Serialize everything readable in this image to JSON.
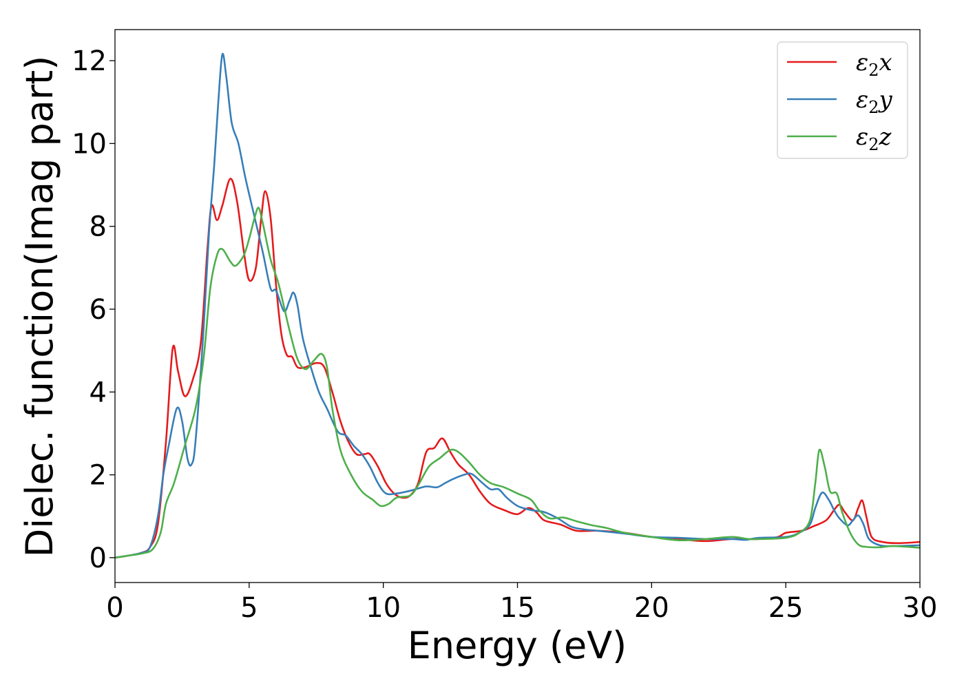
{
  "chart_data": {
    "type": "line",
    "xlabel": "Energy (eV)",
    "ylabel": "Dielec. function(Imag part)",
    "xlim": [
      0,
      30
    ],
    "ylim": [
      -0.6,
      12.75
    ],
    "xticks": [
      0,
      5,
      10,
      15,
      20,
      25,
      30
    ],
    "yticks": [
      0,
      2,
      4,
      6,
      8,
      10,
      12
    ],
    "grid": false,
    "legend_position": "top-right",
    "series": [
      {
        "name": "ε2x",
        "legend": {
          "base": "ε",
          "sub": "2",
          "axis": "x"
        },
        "color": "#e41a1c",
        "points": [
          [
            0,
            0
          ],
          [
            0.5,
            0.05
          ],
          [
            1.0,
            0.12
          ],
          [
            1.3,
            0.25
          ],
          [
            1.6,
            0.8
          ],
          [
            1.9,
            2.8
          ],
          [
            2.15,
            5.05
          ],
          [
            2.35,
            4.5
          ],
          [
            2.6,
            3.9
          ],
          [
            2.9,
            4.3
          ],
          [
            3.2,
            5.2
          ],
          [
            3.45,
            7.5
          ],
          [
            3.6,
            8.5
          ],
          [
            3.8,
            8.15
          ],
          [
            4.0,
            8.5
          ],
          [
            4.3,
            9.15
          ],
          [
            4.55,
            8.6
          ],
          [
            4.8,
            7.4
          ],
          [
            5.0,
            6.7
          ],
          [
            5.25,
            7.0
          ],
          [
            5.45,
            8.2
          ],
          [
            5.6,
            8.85
          ],
          [
            5.8,
            8.2
          ],
          [
            6.0,
            6.6
          ],
          [
            6.2,
            5.4
          ],
          [
            6.4,
            4.9
          ],
          [
            6.6,
            4.85
          ],
          [
            6.8,
            4.6
          ],
          [
            7.1,
            4.6
          ],
          [
            7.5,
            4.7
          ],
          [
            7.8,
            4.6
          ],
          [
            8.1,
            4.0
          ],
          [
            8.4,
            3.3
          ],
          [
            8.7,
            2.8
          ],
          [
            9.0,
            2.5
          ],
          [
            9.3,
            2.5
          ],
          [
            9.5,
            2.5
          ],
          [
            9.8,
            2.2
          ],
          [
            10.1,
            1.8
          ],
          [
            10.4,
            1.55
          ],
          [
            10.7,
            1.45
          ],
          [
            11.0,
            1.5
          ],
          [
            11.3,
            1.8
          ],
          [
            11.6,
            2.55
          ],
          [
            11.9,
            2.65
          ],
          [
            12.2,
            2.88
          ],
          [
            12.5,
            2.55
          ],
          [
            12.8,
            2.25
          ],
          [
            13.2,
            2.0
          ],
          [
            13.6,
            1.6
          ],
          [
            14.0,
            1.3
          ],
          [
            14.5,
            1.15
          ],
          [
            15.0,
            1.05
          ],
          [
            15.4,
            1.2
          ],
          [
            15.7,
            1.1
          ],
          [
            16.0,
            0.9
          ],
          [
            16.6,
            0.8
          ],
          [
            17.2,
            0.65
          ],
          [
            18.0,
            0.65
          ],
          [
            19.0,
            0.6
          ],
          [
            20.0,
            0.5
          ],
          [
            21.0,
            0.45
          ],
          [
            22.0,
            0.4
          ],
          [
            23.0,
            0.45
          ],
          [
            24.0,
            0.45
          ],
          [
            24.7,
            0.5
          ],
          [
            25.0,
            0.6
          ],
          [
            25.6,
            0.65
          ],
          [
            26.0,
            0.75
          ],
          [
            26.5,
            0.9
          ],
          [
            26.8,
            1.15
          ],
          [
            27.0,
            1.28
          ],
          [
            27.2,
            1.1
          ],
          [
            27.5,
            0.9
          ],
          [
            27.7,
            1.2
          ],
          [
            27.85,
            1.38
          ],
          [
            28.0,
            1.0
          ],
          [
            28.2,
            0.5
          ],
          [
            28.6,
            0.38
          ],
          [
            29.2,
            0.35
          ],
          [
            30.0,
            0.38
          ]
        ]
      },
      {
        "name": "ε2y",
        "legend": {
          "base": "ε",
          "sub": "2",
          "axis": "y"
        },
        "color": "#377eb8",
        "points": [
          [
            0,
            0
          ],
          [
            0.5,
            0.05
          ],
          [
            1.0,
            0.12
          ],
          [
            1.3,
            0.25
          ],
          [
            1.6,
            1.0
          ],
          [
            1.8,
            2.0
          ],
          [
            2.0,
            2.7
          ],
          [
            2.3,
            3.6
          ],
          [
            2.5,
            3.3
          ],
          [
            2.7,
            2.4
          ],
          [
            2.85,
            2.25
          ],
          [
            3.0,
            2.8
          ],
          [
            3.3,
            5.5
          ],
          [
            3.5,
            7.8
          ],
          [
            3.7,
            9.5
          ],
          [
            3.85,
            11.0
          ],
          [
            4.0,
            12.15
          ],
          [
            4.15,
            11.6
          ],
          [
            4.35,
            10.5
          ],
          [
            4.6,
            10.0
          ],
          [
            4.85,
            9.2
          ],
          [
            5.1,
            8.5
          ],
          [
            5.5,
            7.4
          ],
          [
            5.8,
            6.5
          ],
          [
            6.0,
            6.45
          ],
          [
            6.3,
            5.95
          ],
          [
            6.5,
            6.2
          ],
          [
            6.65,
            6.4
          ],
          [
            6.8,
            6.1
          ],
          [
            7.0,
            5.3
          ],
          [
            7.3,
            4.6
          ],
          [
            7.6,
            4.0
          ],
          [
            7.9,
            3.6
          ],
          [
            8.3,
            3.05
          ],
          [
            8.6,
            2.95
          ],
          [
            8.9,
            2.7
          ],
          [
            9.2,
            2.5
          ],
          [
            9.5,
            2.2
          ],
          [
            9.8,
            1.8
          ],
          [
            10.1,
            1.55
          ],
          [
            10.5,
            1.55
          ],
          [
            10.9,
            1.6
          ],
          [
            11.2,
            1.65
          ],
          [
            11.6,
            1.72
          ],
          [
            12.0,
            1.7
          ],
          [
            12.3,
            1.8
          ],
          [
            12.6,
            1.9
          ],
          [
            13.0,
            2.0
          ],
          [
            13.3,
            2.02
          ],
          [
            13.7,
            1.8
          ],
          [
            14.0,
            1.65
          ],
          [
            14.3,
            1.65
          ],
          [
            14.6,
            1.45
          ],
          [
            15.0,
            1.25
          ],
          [
            15.5,
            1.15
          ],
          [
            16.0,
            1.1
          ],
          [
            16.5,
            0.95
          ],
          [
            17.0,
            0.75
          ],
          [
            17.5,
            0.68
          ],
          [
            18.0,
            0.65
          ],
          [
            19.0,
            0.58
          ],
          [
            20.0,
            0.5
          ],
          [
            21.0,
            0.48
          ],
          [
            22.0,
            0.45
          ],
          [
            23.0,
            0.45
          ],
          [
            23.5,
            0.43
          ],
          [
            24.0,
            0.48
          ],
          [
            25.0,
            0.5
          ],
          [
            25.5,
            0.6
          ],
          [
            25.9,
            0.8
          ],
          [
            26.1,
            1.2
          ],
          [
            26.35,
            1.57
          ],
          [
            26.6,
            1.4
          ],
          [
            26.8,
            1.15
          ],
          [
            27.0,
            0.95
          ],
          [
            27.3,
            0.78
          ],
          [
            27.5,
            0.9
          ],
          [
            27.7,
            1.02
          ],
          [
            27.9,
            0.8
          ],
          [
            28.1,
            0.45
          ],
          [
            28.5,
            0.3
          ],
          [
            29.0,
            0.28
          ],
          [
            30.0,
            0.3
          ]
        ]
      },
      {
        "name": "ε2z",
        "legend": {
          "base": "ε",
          "sub": "2",
          "axis": "z"
        },
        "color": "#4daf4a",
        "points": [
          [
            0,
            0
          ],
          [
            0.5,
            0.05
          ],
          [
            1.0,
            0.1
          ],
          [
            1.4,
            0.2
          ],
          [
            1.7,
            0.6
          ],
          [
            1.9,
            1.3
          ],
          [
            2.2,
            1.8
          ],
          [
            2.6,
            2.7
          ],
          [
            3.0,
            3.6
          ],
          [
            3.3,
            4.8
          ],
          [
            3.55,
            6.5
          ],
          [
            3.8,
            7.3
          ],
          [
            4.0,
            7.45
          ],
          [
            4.3,
            7.15
          ],
          [
            4.5,
            7.05
          ],
          [
            4.8,
            7.3
          ],
          [
            5.0,
            7.7
          ],
          [
            5.2,
            8.2
          ],
          [
            5.35,
            8.45
          ],
          [
            5.5,
            8.1
          ],
          [
            5.8,
            7.2
          ],
          [
            6.1,
            6.6
          ],
          [
            6.5,
            5.5
          ],
          [
            6.8,
            4.8
          ],
          [
            7.1,
            4.55
          ],
          [
            7.4,
            4.75
          ],
          [
            7.7,
            4.92
          ],
          [
            7.9,
            4.6
          ],
          [
            8.1,
            3.6
          ],
          [
            8.4,
            2.6
          ],
          [
            8.8,
            2.0
          ],
          [
            9.2,
            1.6
          ],
          [
            9.6,
            1.4
          ],
          [
            9.9,
            1.25
          ],
          [
            10.2,
            1.3
          ],
          [
            10.5,
            1.45
          ],
          [
            11.0,
            1.5
          ],
          [
            11.3,
            1.75
          ],
          [
            11.7,
            2.2
          ],
          [
            12.1,
            2.4
          ],
          [
            12.5,
            2.6
          ],
          [
            12.8,
            2.55
          ],
          [
            13.2,
            2.3
          ],
          [
            13.6,
            2.0
          ],
          [
            14.0,
            1.8
          ],
          [
            14.5,
            1.7
          ],
          [
            15.0,
            1.55
          ],
          [
            15.5,
            1.4
          ],
          [
            15.8,
            1.15
          ],
          [
            16.2,
            0.95
          ],
          [
            16.7,
            0.97
          ],
          [
            17.2,
            0.88
          ],
          [
            17.8,
            0.78
          ],
          [
            18.3,
            0.72
          ],
          [
            19.0,
            0.6
          ],
          [
            20.0,
            0.5
          ],
          [
            21.0,
            0.42
          ],
          [
            22.0,
            0.45
          ],
          [
            23.0,
            0.5
          ],
          [
            23.6,
            0.45
          ],
          [
            24.0,
            0.45
          ],
          [
            25.0,
            0.48
          ],
          [
            25.5,
            0.6
          ],
          [
            25.9,
            0.9
          ],
          [
            26.1,
            1.8
          ],
          [
            26.25,
            2.6
          ],
          [
            26.45,
            2.2
          ],
          [
            26.65,
            1.6
          ],
          [
            26.9,
            1.55
          ],
          [
            27.1,
            1.1
          ],
          [
            27.4,
            0.6
          ],
          [
            27.7,
            0.32
          ],
          [
            28.0,
            0.26
          ],
          [
            28.5,
            0.25
          ],
          [
            29.0,
            0.28
          ],
          [
            30.0,
            0.24
          ]
        ]
      }
    ]
  }
}
